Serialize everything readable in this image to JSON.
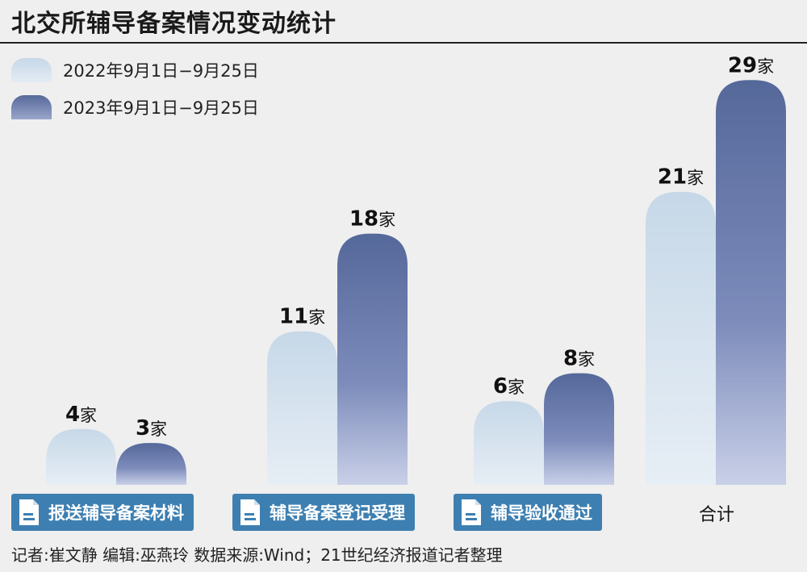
{
  "title": "北交所辅导备案情况变动统计",
  "chart_data": {
    "type": "bar",
    "title": "北交所辅导备案情况变动统计",
    "categories": [
      "报送辅导备案材料",
      "辅导备案登记受理",
      "辅导验收通过",
      "合计"
    ],
    "series": [
      {
        "name": "2022年9月1日−9月25日",
        "values": [
          4,
          11,
          6,
          21
        ],
        "color": "#c9dae9"
      },
      {
        "name": "2023年9月1日−9月25日",
        "values": [
          3,
          18,
          8,
          29
        ],
        "color": "#56699a"
      }
    ],
    "unit": "家",
    "legend_position": "top-left",
    "grid": false
  },
  "footer": "记者:崔文静   编辑:巫燕玲   数据来源:Wind；21世纪经济报道记者整理"
}
